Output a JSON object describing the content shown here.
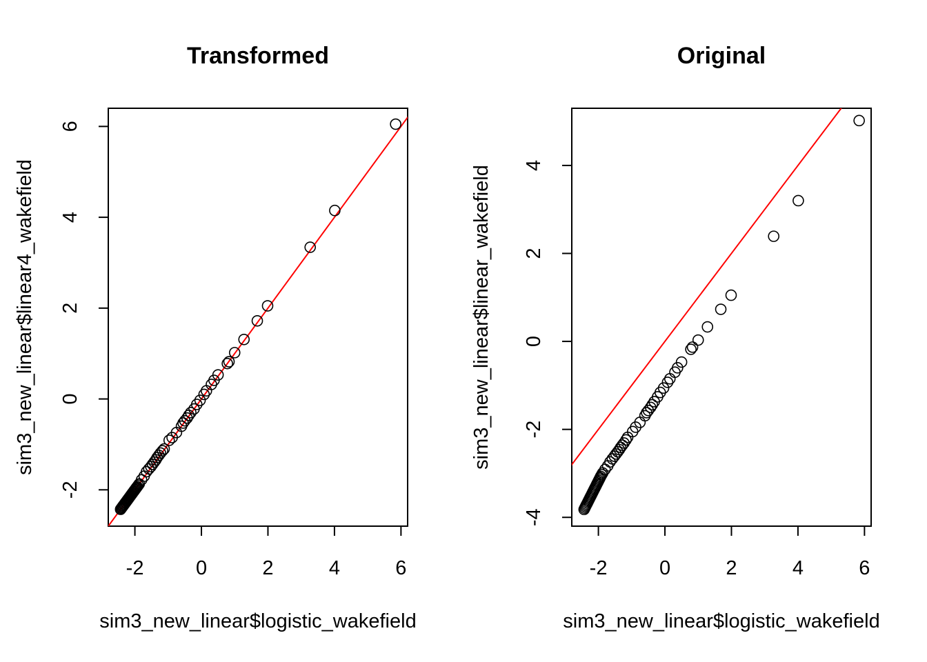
{
  "chart_data": [
    {
      "type": "scatter",
      "title": "Transformed",
      "xlabel": "sim3_new_linear$logistic_wakefield",
      "ylabel": "sim3_new_linear$linear4_wakefield",
      "xlim": [
        -2.8,
        6.2
      ],
      "ylim": [
        -2.8,
        6.4
      ],
      "xticks": [
        -2,
        0,
        2,
        4,
        6
      ],
      "yticks": [
        -2,
        0,
        2,
        4,
        6
      ],
      "grid": false,
      "reference_line": {
        "slope": 1,
        "intercept": 0,
        "color": "#ff0000"
      },
      "x": [
        -2.43,
        -2.41,
        -2.39,
        -2.37,
        -2.35,
        -2.33,
        -2.31,
        -2.29,
        -2.27,
        -2.25,
        -2.23,
        -2.21,
        -2.19,
        -2.17,
        -2.15,
        -2.13,
        -2.11,
        -2.09,
        -2.07,
        -2.05,
        -2.03,
        -2.01,
        -1.99,
        -1.97,
        -1.95,
        -1.93,
        -1.9,
        -1.87,
        -1.8,
        -1.72,
        -1.65,
        -1.58,
        -1.52,
        -1.47,
        -1.42,
        -1.37,
        -1.33,
        -1.28,
        -1.23,
        -1.17,
        -1.12,
        -0.97,
        -0.88,
        -0.75,
        -0.6,
        -0.55,
        -0.5,
        -0.43,
        -0.38,
        -0.32,
        -0.22,
        -0.14,
        -0.04,
        0.08,
        0.15,
        0.3,
        0.38,
        0.5,
        0.78,
        0.83,
        1.0,
        1.28,
        1.68,
        1.99,
        3.27,
        4.01,
        5.84
      ],
      "y": [
        -2.43,
        -2.41,
        -2.39,
        -2.37,
        -2.35,
        -2.33,
        -2.31,
        -2.29,
        -2.27,
        -2.25,
        -2.23,
        -2.21,
        -2.19,
        -2.17,
        -2.15,
        -2.13,
        -2.11,
        -2.09,
        -2.07,
        -2.05,
        -2.03,
        -2.01,
        -1.99,
        -1.97,
        -1.95,
        -1.93,
        -1.9,
        -1.87,
        -1.78,
        -1.7,
        -1.6,
        -1.54,
        -1.49,
        -1.44,
        -1.39,
        -1.34,
        -1.29,
        -1.24,
        -1.19,
        -1.14,
        -1.1,
        -0.91,
        -0.85,
        -0.74,
        -0.6,
        -0.53,
        -0.48,
        -0.42,
        -0.36,
        -0.3,
        -0.22,
        -0.12,
        -0.03,
        0.1,
        0.18,
        0.32,
        0.41,
        0.53,
        0.78,
        0.82,
        1.02,
        1.31,
        1.72,
        2.05,
        3.34,
        4.15,
        6.05
      ]
    },
    {
      "type": "scatter",
      "title": "Original",
      "xlabel": "sim3_new_linear$logistic_wakefield",
      "ylabel": "sim3_new_linear$linear_wakefield",
      "xlim": [
        -2.8,
        6.2
      ],
      "ylim": [
        -4.2,
        5.3
      ],
      "xticks": [
        -2,
        0,
        2,
        4,
        6
      ],
      "yticks": [
        -4,
        -2,
        0,
        2,
        4
      ],
      "grid": false,
      "reference_line": {
        "slope": 1,
        "intercept": 0,
        "color": "#ff0000"
      },
      "x": [
        -2.43,
        -2.41,
        -2.39,
        -2.37,
        -2.35,
        -2.33,
        -2.31,
        -2.29,
        -2.27,
        -2.25,
        -2.23,
        -2.21,
        -2.19,
        -2.17,
        -2.15,
        -2.13,
        -2.11,
        -2.09,
        -2.07,
        -2.05,
        -2.03,
        -2.01,
        -1.99,
        -1.97,
        -1.95,
        -1.93,
        -1.9,
        -1.87,
        -1.8,
        -1.72,
        -1.65,
        -1.58,
        -1.52,
        -1.47,
        -1.42,
        -1.37,
        -1.33,
        -1.28,
        -1.23,
        -1.17,
        -1.12,
        -0.97,
        -0.88,
        -0.75,
        -0.6,
        -0.55,
        -0.5,
        -0.43,
        -0.38,
        -0.32,
        -0.22,
        -0.14,
        -0.04,
        0.08,
        0.15,
        0.3,
        0.38,
        0.5,
        0.78,
        0.83,
        1.0,
        1.28,
        1.68,
        1.99,
        3.27,
        4.01,
        5.84
      ],
      "y": [
        -3.82,
        -3.79,
        -3.76,
        -3.73,
        -3.7,
        -3.67,
        -3.64,
        -3.61,
        -3.58,
        -3.55,
        -3.52,
        -3.49,
        -3.46,
        -3.43,
        -3.4,
        -3.37,
        -3.34,
        -3.31,
        -3.28,
        -3.25,
        -3.22,
        -3.19,
        -3.16,
        -3.13,
        -3.1,
        -3.07,
        -3.03,
        -2.99,
        -2.91,
        -2.83,
        -2.74,
        -2.67,
        -2.61,
        -2.56,
        -2.51,
        -2.46,
        -2.41,
        -2.36,
        -2.31,
        -2.24,
        -2.18,
        -2.05,
        -1.95,
        -1.84,
        -1.69,
        -1.62,
        -1.57,
        -1.5,
        -1.44,
        -1.37,
        -1.26,
        -1.16,
        -1.06,
        -0.93,
        -0.85,
        -0.7,
        -0.6,
        -0.47,
        -0.18,
        -0.13,
        0.03,
        0.33,
        0.73,
        1.05,
        2.39,
        3.2,
        5.02
      ]
    }
  ]
}
